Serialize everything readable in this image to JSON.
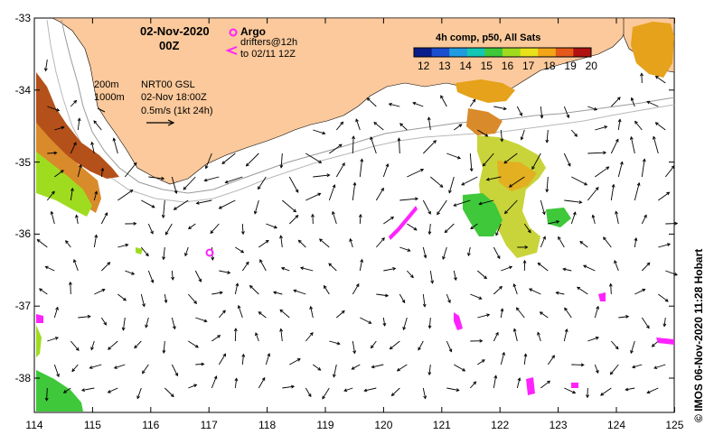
{
  "map": {
    "date_line1": "02-Nov-2020",
    "date_line2": "00Z",
    "argo_label": "Argo",
    "drifters_line1": "drifters@12h",
    "drifters_line2": "to 02/11 12Z",
    "depth_200": "200m",
    "depth_1000": "1000m",
    "product_line1": "NRT00 GSL",
    "product_line2": "02-Nov 18:00Z",
    "scale_line": "0.5m/s (1kt 24h)",
    "colorbar_title": "4h comp, p50, All Sats",
    "colorbar_ticks": [
      "12",
      "13",
      "14",
      "15",
      "16",
      "17",
      "18",
      "19",
      "20"
    ],
    "colorbar_colors": [
      "#081d8a",
      "#1b4fd0",
      "#1f9be0",
      "#14c7b5",
      "#3ec83a",
      "#9fdc1f",
      "#e7e21a",
      "#f2a516",
      "#e5591a",
      "#b01212"
    ],
    "y_ticks": [
      "-33",
      "-34",
      "-35",
      "-36",
      "-37",
      "-38"
    ],
    "x_ticks": [
      "114",
      "115",
      "116",
      "117",
      "118",
      "119",
      "120",
      "121",
      "122",
      "123",
      "124",
      "125"
    ],
    "credit": "© IMOS 06-Nov-2020 11:28 Hobart",
    "colors": {
      "land": "#fbc99b",
      "argo": "#ff22ff",
      "drifter": "#ff22ff"
    }
  }
}
